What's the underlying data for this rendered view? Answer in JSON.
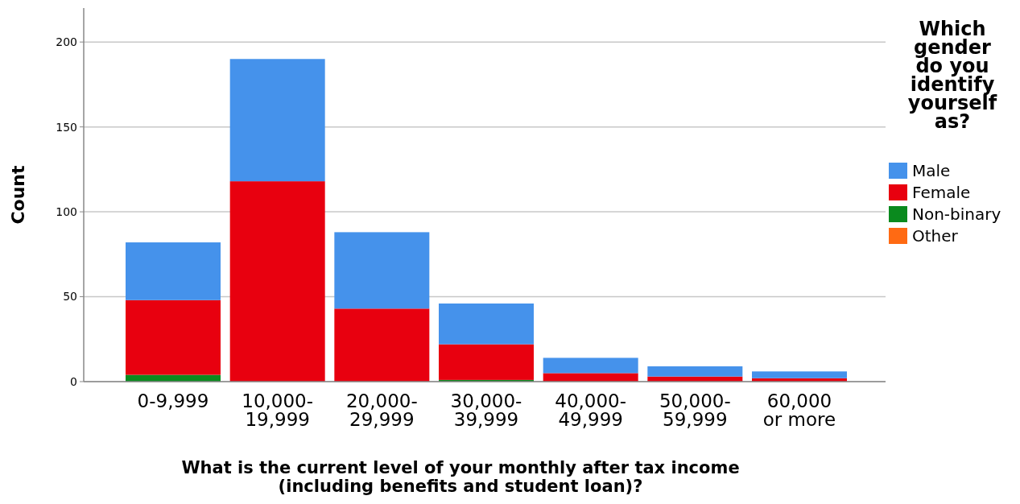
{
  "chart_data": {
    "type": "bar",
    "stacked": true,
    "xlabel": "What is the current level of your monthly after tax income (including benefits and student loan)?",
    "ylabel": "Count",
    "legend_title": "Which gender do you identify yourself as?",
    "legend": "right",
    "categories": [
      "0-9,999",
      "10,000-\n19,999",
      "20,000-\n29,999",
      "30,000-\n39,999",
      "40,000-\n49,999",
      "50,000-\n59,999",
      "60,000\nor more"
    ],
    "series": [
      {
        "name": "Other",
        "color": "#ff6a13",
        "values": [
          0,
          0,
          0,
          0,
          0,
          0,
          0
        ]
      },
      {
        "name": "Non-binary",
        "color": "#0a8a1e",
        "values": [
          4,
          0,
          0,
          1,
          0,
          0,
          0
        ]
      },
      {
        "name": "Female",
        "color": "#e8000f",
        "values": [
          44,
          118,
          43,
          21,
          5,
          3,
          2
        ]
      },
      {
        "name": "Male",
        "color": "#4592eb",
        "values": [
          34,
          72,
          45,
          24,
          9,
          6,
          4
        ]
      }
    ],
    "ylim": [
      0,
      220
    ],
    "yticks": [
      0,
      50,
      100,
      150,
      200
    ],
    "grid": "y"
  }
}
